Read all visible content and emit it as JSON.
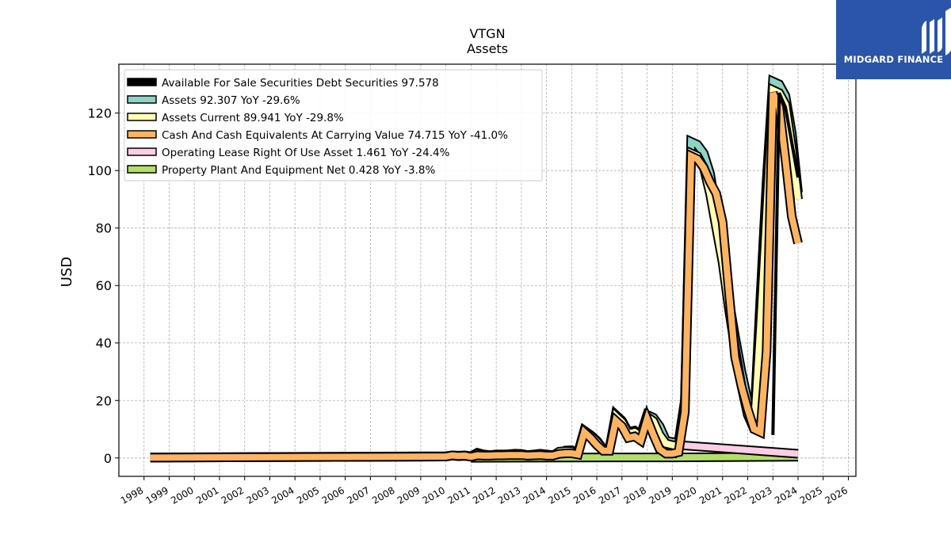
{
  "chart_data": {
    "type": "area",
    "title": "VTGN",
    "subtitle": "Assets",
    "ylabel": "USD",
    "xlabel": "",
    "xlim": [
      1997.0,
      2026.3
    ],
    "ylim": [
      -6.4,
      137
    ],
    "yticks": [
      0,
      20,
      40,
      60,
      80,
      100,
      120
    ],
    "xticks": [
      "1998",
      "1999",
      "2000",
      "2001",
      "2002",
      "2003",
      "2004",
      "2005",
      "2006",
      "2007",
      "2008",
      "2009",
      "2010",
      "2011",
      "2012",
      "2013",
      "2014",
      "2015",
      "2016",
      "2017",
      "2018",
      "2019",
      "2020",
      "2021",
      "2022",
      "2023",
      "2024",
      "2025",
      "2026"
    ],
    "grid": true,
    "legend_position": "top-left",
    "series": [
      {
        "name": "Available For Sale Securities Debt Securities",
        "legend_text": "Available For Sale Securities Debt Securities  97.578",
        "color": "#000000",
        "points": [
          [
            2023.0,
            8.0
          ],
          [
            2023.25,
            127.0
          ],
          [
            2023.5,
            122.0
          ],
          [
            2024.0,
            97.578
          ]
        ]
      },
      {
        "name": "Assets",
        "legend_text": "Assets  92.307 YoY -29.6%",
        "color": "#8dd3c7",
        "points": [
          [
            1998.25,
            0.2
          ],
          [
            2010.0,
            0.6
          ],
          [
            2010.25,
            0.9
          ],
          [
            2010.5,
            0.8
          ],
          [
            2010.75,
            0.9
          ],
          [
            2011.0,
            0.6
          ],
          [
            2011.25,
            1.8
          ],
          [
            2011.5,
            1.2
          ],
          [
            2011.75,
            1.0
          ],
          [
            2012.0,
            1.2
          ],
          [
            2012.25,
            1.2
          ],
          [
            2012.5,
            1.3
          ],
          [
            2012.75,
            1.5
          ],
          [
            2013.0,
            1.4
          ],
          [
            2013.25,
            1.0
          ],
          [
            2013.5,
            1.2
          ],
          [
            2013.75,
            1.5
          ],
          [
            2014.0,
            1.2
          ],
          [
            2014.25,
            1.0
          ],
          [
            2014.5,
            1.5
          ],
          [
            2014.75,
            2.6
          ],
          [
            2015.0,
            2.7
          ],
          [
            2015.25,
            1.8
          ],
          [
            2015.5,
            9.5
          ],
          [
            2015.75,
            8.0
          ],
          [
            2016.0,
            6.0
          ],
          [
            2016.25,
            3.2
          ],
          [
            2016.5,
            3.0
          ],
          [
            2016.75,
            15.0
          ],
          [
            2017.0,
            13.0
          ],
          [
            2017.25,
            9.0
          ],
          [
            2017.5,
            9.5
          ],
          [
            2017.75,
            8.0
          ],
          [
            2018.0,
            15.0
          ],
          [
            2018.25,
            14.0
          ],
          [
            2018.5,
            11.0
          ],
          [
            2018.75,
            6.0
          ],
          [
            2019.0,
            5.5
          ],
          [
            2019.25,
            5.5
          ],
          [
            2019.5,
            20.0
          ],
          [
            2019.75,
            110.0
          ],
          [
            2020.0,
            109.0
          ],
          [
            2020.25,
            106.0
          ],
          [
            2020.5,
            99.0
          ],
          [
            2020.75,
            86.0
          ],
          [
            2021.0,
            72.0
          ],
          [
            2021.25,
            55.0
          ],
          [
            2021.5,
            42.0
          ],
          [
            2021.75,
            30.0
          ],
          [
            2022.0,
            20.0
          ],
          [
            2022.25,
            12.0
          ],
          [
            2022.5,
            55.0
          ],
          [
            2022.75,
            96.0
          ],
          [
            2023.0,
            131.0
          ],
          [
            2023.25,
            130.0
          ],
          [
            2023.5,
            126.0
          ],
          [
            2023.75,
            113.0
          ],
          [
            2024.0,
            92.307
          ]
        ]
      },
      {
        "name": "Assets Current",
        "legend_text": "Assets Current  89.941 YoY -29.8%",
        "color": "#ffffb3",
        "points": [
          [
            1998.25,
            0.1
          ],
          [
            2010.0,
            0.5
          ],
          [
            2010.25,
            0.8
          ],
          [
            2010.5,
            0.6
          ],
          [
            2010.75,
            0.7
          ],
          [
            2011.0,
            0.5
          ],
          [
            2011.25,
            1.5
          ],
          [
            2011.5,
            1.0
          ],
          [
            2011.75,
            0.9
          ],
          [
            2012.0,
            1.0
          ],
          [
            2012.25,
            1.0
          ],
          [
            2012.5,
            1.1
          ],
          [
            2012.75,
            1.3
          ],
          [
            2013.0,
            1.2
          ],
          [
            2013.25,
            0.8
          ],
          [
            2013.5,
            1.0
          ],
          [
            2013.75,
            1.3
          ],
          [
            2014.0,
            1.0
          ],
          [
            2014.25,
            0.8
          ],
          [
            2014.5,
            2.2
          ],
          [
            2014.75,
            2.4
          ],
          [
            2015.0,
            2.3
          ],
          [
            2015.25,
            1.5
          ],
          [
            2015.5,
            9.2
          ],
          [
            2015.75,
            7.8
          ],
          [
            2016.0,
            5.6
          ],
          [
            2016.25,
            3.0
          ],
          [
            2016.5,
            2.8
          ],
          [
            2016.75,
            14.5
          ],
          [
            2017.0,
            12.5
          ],
          [
            2017.25,
            8.5
          ],
          [
            2017.5,
            9.0
          ],
          [
            2017.75,
            7.5
          ],
          [
            2018.0,
            14.3
          ],
          [
            2018.25,
            12.8
          ],
          [
            2018.5,
            8.0
          ],
          [
            2018.75,
            5.0
          ],
          [
            2019.0,
            4.5
          ],
          [
            2019.25,
            4.0
          ],
          [
            2019.5,
            19.0
          ],
          [
            2019.75,
            106.0
          ],
          [
            2020.0,
            105.0
          ],
          [
            2020.25,
            101.0
          ],
          [
            2020.5,
            92.0
          ],
          [
            2020.75,
            80.0
          ],
          [
            2021.0,
            68.0
          ],
          [
            2021.25,
            52.0
          ],
          [
            2021.5,
            38.0
          ],
          [
            2021.75,
            25.0
          ],
          [
            2022.0,
            15.0
          ],
          [
            2022.25,
            10.0
          ],
          [
            2022.5,
            46.0
          ],
          [
            2022.75,
            86.0
          ],
          [
            2023.0,
            128.0
          ],
          [
            2023.25,
            127.0
          ],
          [
            2023.5,
            123.0
          ],
          [
            2023.75,
            108.0
          ],
          [
            2024.0,
            89.941
          ]
        ]
      },
      {
        "name": "Cash And Cash Equivalents At Carrying Value",
        "legend_text": "Cash And Cash Equivalents At Carrying Value  74.715 YoY -41.0%",
        "color": "#fdb462",
        "points": [
          [
            1998.25,
            0.1
          ],
          [
            2010.0,
            0.5
          ],
          [
            2010.25,
            0.9
          ],
          [
            2010.5,
            0.7
          ],
          [
            2010.75,
            0.8
          ],
          [
            2011.0,
            0.4
          ],
          [
            2011.25,
            0.9
          ],
          [
            2011.5,
            0.8
          ],
          [
            2011.75,
            0.8
          ],
          [
            2012.0,
            0.9
          ],
          [
            2012.25,
            0.9
          ],
          [
            2012.5,
            1.0
          ],
          [
            2012.75,
            1.0
          ],
          [
            2013.0,
            1.0
          ],
          [
            2013.25,
            0.8
          ],
          [
            2013.5,
            0.9
          ],
          [
            2013.75,
            1.0
          ],
          [
            2014.0,
            0.8
          ],
          [
            2014.25,
            0.8
          ],
          [
            2014.5,
            1.4
          ],
          [
            2014.75,
            1.6
          ],
          [
            2015.0,
            1.6
          ],
          [
            2015.25,
            1.2
          ],
          [
            2015.5,
            9.0
          ],
          [
            2015.75,
            7.0
          ],
          [
            2016.0,
            4.5
          ],
          [
            2016.25,
            2.5
          ],
          [
            2016.5,
            2.5
          ],
          [
            2016.75,
            13.0
          ],
          [
            2017.0,
            11.0
          ],
          [
            2017.25,
            7.0
          ],
          [
            2017.5,
            7.5
          ],
          [
            2017.75,
            6.0
          ],
          [
            2018.0,
            13.5
          ],
          [
            2018.25,
            8.0
          ],
          [
            2018.5,
            3.0
          ],
          [
            2018.75,
            1.5
          ],
          [
            2019.0,
            1.5
          ],
          [
            2019.25,
            2.0
          ],
          [
            2019.5,
            16.0
          ],
          [
            2019.75,
            105.0
          ],
          [
            2020.0,
            104.0
          ],
          [
            2020.25,
            101.0
          ],
          [
            2020.5,
            96.0
          ],
          [
            2020.75,
            92.0
          ],
          [
            2021.0,
            82.0
          ],
          [
            2021.25,
            58.0
          ],
          [
            2021.5,
            35.0
          ],
          [
            2021.75,
            25.0
          ],
          [
            2022.0,
            17.0
          ],
          [
            2022.25,
            10.0
          ],
          [
            2022.5,
            9.0
          ],
          [
            2022.75,
            37.0
          ],
          [
            2023.0,
            127.0
          ],
          [
            2023.25,
            122.0
          ],
          [
            2023.5,
            104.0
          ],
          [
            2023.75,
            84.0
          ],
          [
            2024.0,
            74.715
          ]
        ]
      },
      {
        "name": "Operating Lease Right Of Use Asset",
        "legend_text": "Operating Lease Right Of Use Asset  1.461 YoY -24.4%",
        "color": "#fccde5",
        "points": [
          [
            2019.0,
            0.6
          ],
          [
            2019.25,
            4.5
          ],
          [
            2024.0,
            1.461
          ]
        ]
      },
      {
        "name": "Property Plant And Equipment Net",
        "legend_text": "Property Plant And Equipment Net  0.428 YoY -3.8%",
        "color": "#b3de69",
        "points": [
          [
            2011.0,
            0.05
          ],
          [
            2017.0,
            0.2
          ],
          [
            2019.0,
            0.2
          ],
          [
            2024.0,
            0.428
          ]
        ]
      }
    ]
  }
}
